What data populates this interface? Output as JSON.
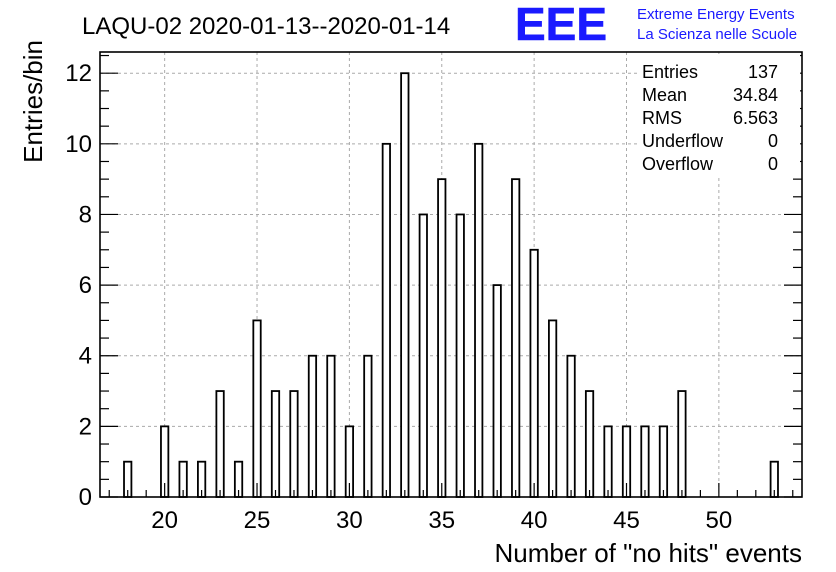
{
  "chart_data": {
    "type": "bar",
    "title": "LAQU-02 2020-01-13--2020-01-14",
    "xlabel": "Number of \"no hits\" events",
    "ylabel": "Entries/bin",
    "xlim": [
      16.5,
      54.5
    ],
    "ylim": [
      0,
      12.6
    ],
    "xticks": [
      20,
      25,
      30,
      35,
      40,
      45,
      50
    ],
    "yticks": [
      0,
      2,
      4,
      6,
      8,
      10,
      12
    ],
    "grid": true,
    "bin_width": 0.4,
    "series": [
      {
        "x": [
          18,
          20,
          21,
          22,
          23,
          24,
          25,
          26,
          27,
          28,
          29,
          30,
          31,
          32,
          33,
          34,
          35,
          36,
          37,
          38,
          39,
          40,
          41,
          42,
          43,
          44,
          45,
          46,
          47,
          48,
          53
        ],
        "values": [
          1,
          2,
          1,
          1,
          3,
          1,
          5,
          3,
          3,
          4,
          4,
          2,
          4,
          10,
          12,
          8,
          9,
          8,
          10,
          6,
          9,
          7,
          5,
          4,
          3,
          2,
          2,
          2,
          2,
          3,
          1
        ]
      }
    ],
    "stats": [
      {
        "label": "Entries",
        "value": "137"
      },
      {
        "label": "Mean",
        "value": "34.84"
      },
      {
        "label": "RMS",
        "value": "6.563"
      },
      {
        "label": "Underflow",
        "value": "0"
      },
      {
        "label": "Overflow",
        "value": "0"
      }
    ]
  },
  "logo": {
    "mark": "EEE",
    "line1": "Extreme Energy Events",
    "line2": "La Scienza nelle Scuole",
    "color": "#1a1aff"
  }
}
